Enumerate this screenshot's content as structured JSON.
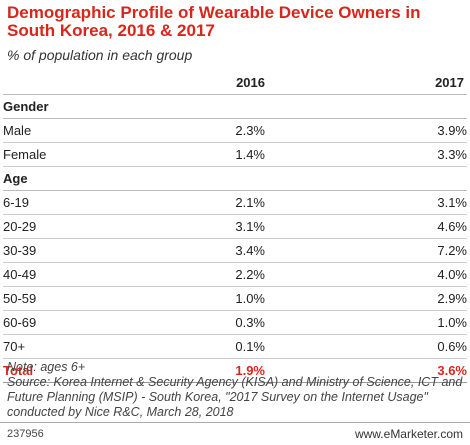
{
  "title": "Demographic Profile of Wearable Device Owners in South Korea, 2016 & 2017",
  "subtitle": "% of population in each group",
  "chart_data": {
    "type": "table",
    "columns": [
      "2016",
      "2017"
    ],
    "sections": [
      {
        "name": "Gender",
        "rows": [
          {
            "label": "Male",
            "values": [
              "2.3%",
              "3.9%"
            ]
          },
          {
            "label": "Female",
            "values": [
              "1.4%",
              "3.3%"
            ]
          }
        ]
      },
      {
        "name": "Age",
        "rows": [
          {
            "label": "6-19",
            "values": [
              "2.1%",
              "3.1%"
            ]
          },
          {
            "label": "20-29",
            "values": [
              "3.1%",
              "4.6%"
            ]
          },
          {
            "label": "30-39",
            "values": [
              "3.4%",
              "7.2%"
            ]
          },
          {
            "label": "40-49",
            "values": [
              "2.2%",
              "4.0%"
            ]
          },
          {
            "label": "50-59",
            "values": [
              "1.0%",
              "2.9%"
            ]
          },
          {
            "label": "60-69",
            "values": [
              "0.3%",
              "1.0%"
            ]
          },
          {
            "label": "70+",
            "values": [
              "0.1%",
              "0.6%"
            ]
          }
        ]
      }
    ],
    "total": {
      "label": "Total",
      "values": [
        "1.9%",
        "3.6%"
      ]
    }
  },
  "note": "Note: ages 6+",
  "source": "Source: Korea Internet & Security Agency (KISA) and Ministry of Science, ICT and Future Planning (MSIP) - South Korea, \"2017 Survey on the Internet Usage\" conducted by Nice R&C, March 28, 2018",
  "footer": {
    "id": "237956",
    "brand": "www.eMarketer.com"
  },
  "colors": {
    "accent": "#d9261c",
    "text": "#222222"
  }
}
